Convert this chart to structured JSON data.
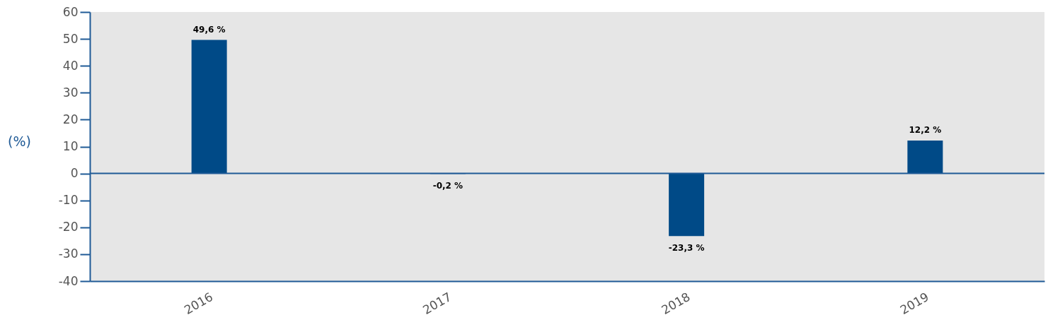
{
  "chart_data": {
    "type": "bar",
    "ylabel": "(%)",
    "categories": [
      "2016",
      "2017",
      "2018",
      "2019"
    ],
    "values": [
      49.6,
      -0.2,
      -23.3,
      12.2
    ],
    "value_labels": [
      "49,6 %",
      "-0,2 %",
      "-23,3 %",
      "12,2 %"
    ],
    "color": "#004a87",
    "ylim": [
      -40,
      60
    ],
    "yticks": [
      -40,
      -30,
      -20,
      -10,
      0,
      10,
      20,
      30,
      40,
      50,
      60
    ],
    "ref_lines": [
      {
        "axis": "y",
        "value": 0,
        "color": "#1f5a96"
      }
    ]
  }
}
